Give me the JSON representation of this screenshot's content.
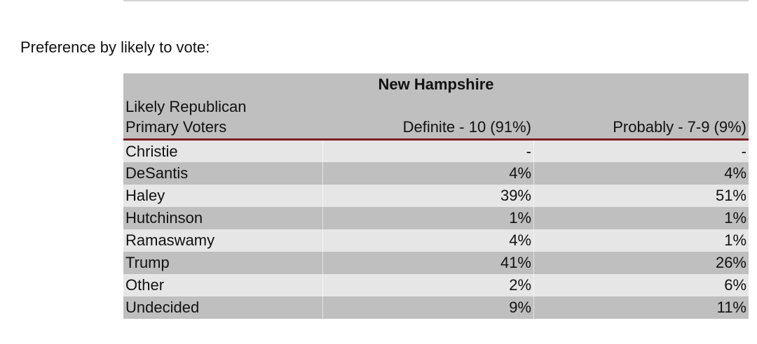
{
  "caption": "Preference by likely to vote:",
  "table": {
    "state": "New Hampshire",
    "row_header_line1": "Likely Republican",
    "row_header_line2": "Primary Voters",
    "columns": [
      "Definite - 10 (91%)",
      "Probably - 7-9 (9%)"
    ],
    "rows": [
      {
        "name": "Christie",
        "v1": "-",
        "v2": "-"
      },
      {
        "name": "DeSantis",
        "v1": "4%",
        "v2": "4%"
      },
      {
        "name": "Haley",
        "v1": "39%",
        "v2": "51%"
      },
      {
        "name": "Hutchinson",
        "v1": "1%",
        "v2": "1%"
      },
      {
        "name": "Ramaswamy",
        "v1": "4%",
        "v2": "1%"
      },
      {
        "name": "Trump",
        "v1": "41%",
        "v2": "26%"
      },
      {
        "name": "Other",
        "v1": "2%",
        "v2": "6%"
      },
      {
        "name": "Undecided",
        "v1": "9%",
        "v2": "11%"
      }
    ]
  }
}
